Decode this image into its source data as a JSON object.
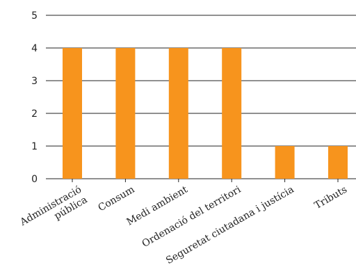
{
  "chart_data": {
    "type": "bar",
    "title": "",
    "xlabel": "",
    "ylabel": "",
    "categories": [
      [
        "Administració",
        "pública"
      ],
      [
        "Consum"
      ],
      [
        "Medi ambient"
      ],
      [
        "Ordenació del territori"
      ],
      [
        "Seguretat ciutadana i justícia"
      ],
      [
        "Tributs"
      ]
    ],
    "values": [
      4,
      4,
      4,
      4,
      1,
      1
    ],
    "ylim": [
      0,
      5
    ],
    "yticks": [
      "0",
      "1",
      "2",
      "3",
      "4",
      "5"
    ],
    "grid": true,
    "bar_color": "#f7941d",
    "legend": "none"
  }
}
